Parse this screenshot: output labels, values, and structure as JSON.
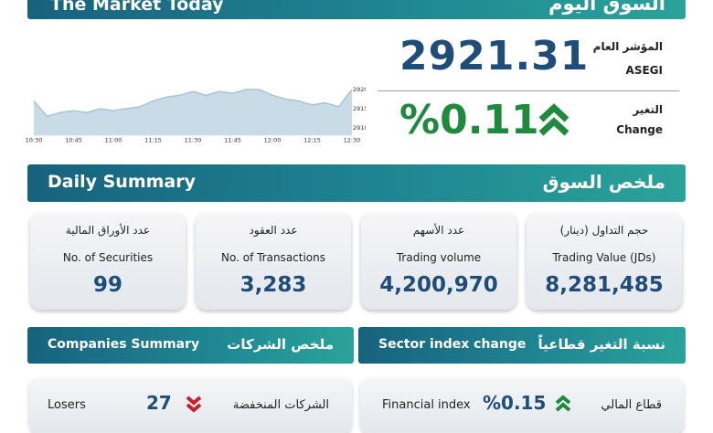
{
  "header": {
    "title_en": "The Market Today",
    "title_ar": "السوق اليوم"
  },
  "index": {
    "label_ar": "المؤشر العام",
    "label_en": "ASEGI",
    "value": "2921.31"
  },
  "change": {
    "label_ar": "التغير",
    "label_en": "Change",
    "value": "%0.11"
  },
  "chart_data": {
    "type": "line",
    "categories": [
      "10:30",
      null,
      null,
      "10:45",
      null,
      null,
      "11:00",
      null,
      null,
      "11:15",
      null,
      null,
      "11:30",
      null,
      null,
      "11:45",
      null,
      null,
      "12:00",
      null,
      null,
      "12:15",
      null,
      null,
      "12:30"
    ],
    "values": [
      2917,
      2913,
      2914,
      2914.5,
      2914,
      2915,
      2914.5,
      2915,
      2915.5,
      2917,
      2918,
      2918.5,
      2919.5,
      2918.5,
      2919.5,
      2919,
      2920,
      2920,
      2918.5,
      2917.5,
      2917,
      2916,
      2916.5,
      2915.5,
      2920
    ],
    "color": "#a7c3d6",
    "fill": "#c9dbe7",
    "ylim": [
      2908,
      2922
    ],
    "yticks": [
      2910,
      2915,
      2920
    ],
    "grid": false
  },
  "daily_summary": {
    "title_en": "Daily Summary",
    "title_ar": "ملخص السوق",
    "cards": [
      {
        "label_ar": "عدد الأوراق المالية",
        "label_en": "No. of Securities",
        "value": "99"
      },
      {
        "label_ar": "عدد العقود",
        "label_en": "No. of Transactions",
        "value": "3,283"
      },
      {
        "label_ar": "عدد الأسهم",
        "label_en": "Trading volume",
        "value": "4,200,970"
      },
      {
        "label_ar": "حجم التداول (دينار)",
        "label_en": "Trading Value (JDs)",
        "value": "8,281,485"
      }
    ]
  },
  "companies_summary": {
    "title_en": "Companies Summary",
    "title_ar": "ملخص الشركات",
    "rows": [
      {
        "label_en": "Losers",
        "value": "27",
        "label_ar": "الشركات المنخفضة"
      }
    ]
  },
  "sector_change": {
    "title_en": "Sector index change",
    "title_ar": "نسبة التغير قطاعياً",
    "rows": [
      {
        "label_en": "Financial index",
        "value": "%0.15",
        "label_ar": "قطاع المالي"
      }
    ]
  }
}
